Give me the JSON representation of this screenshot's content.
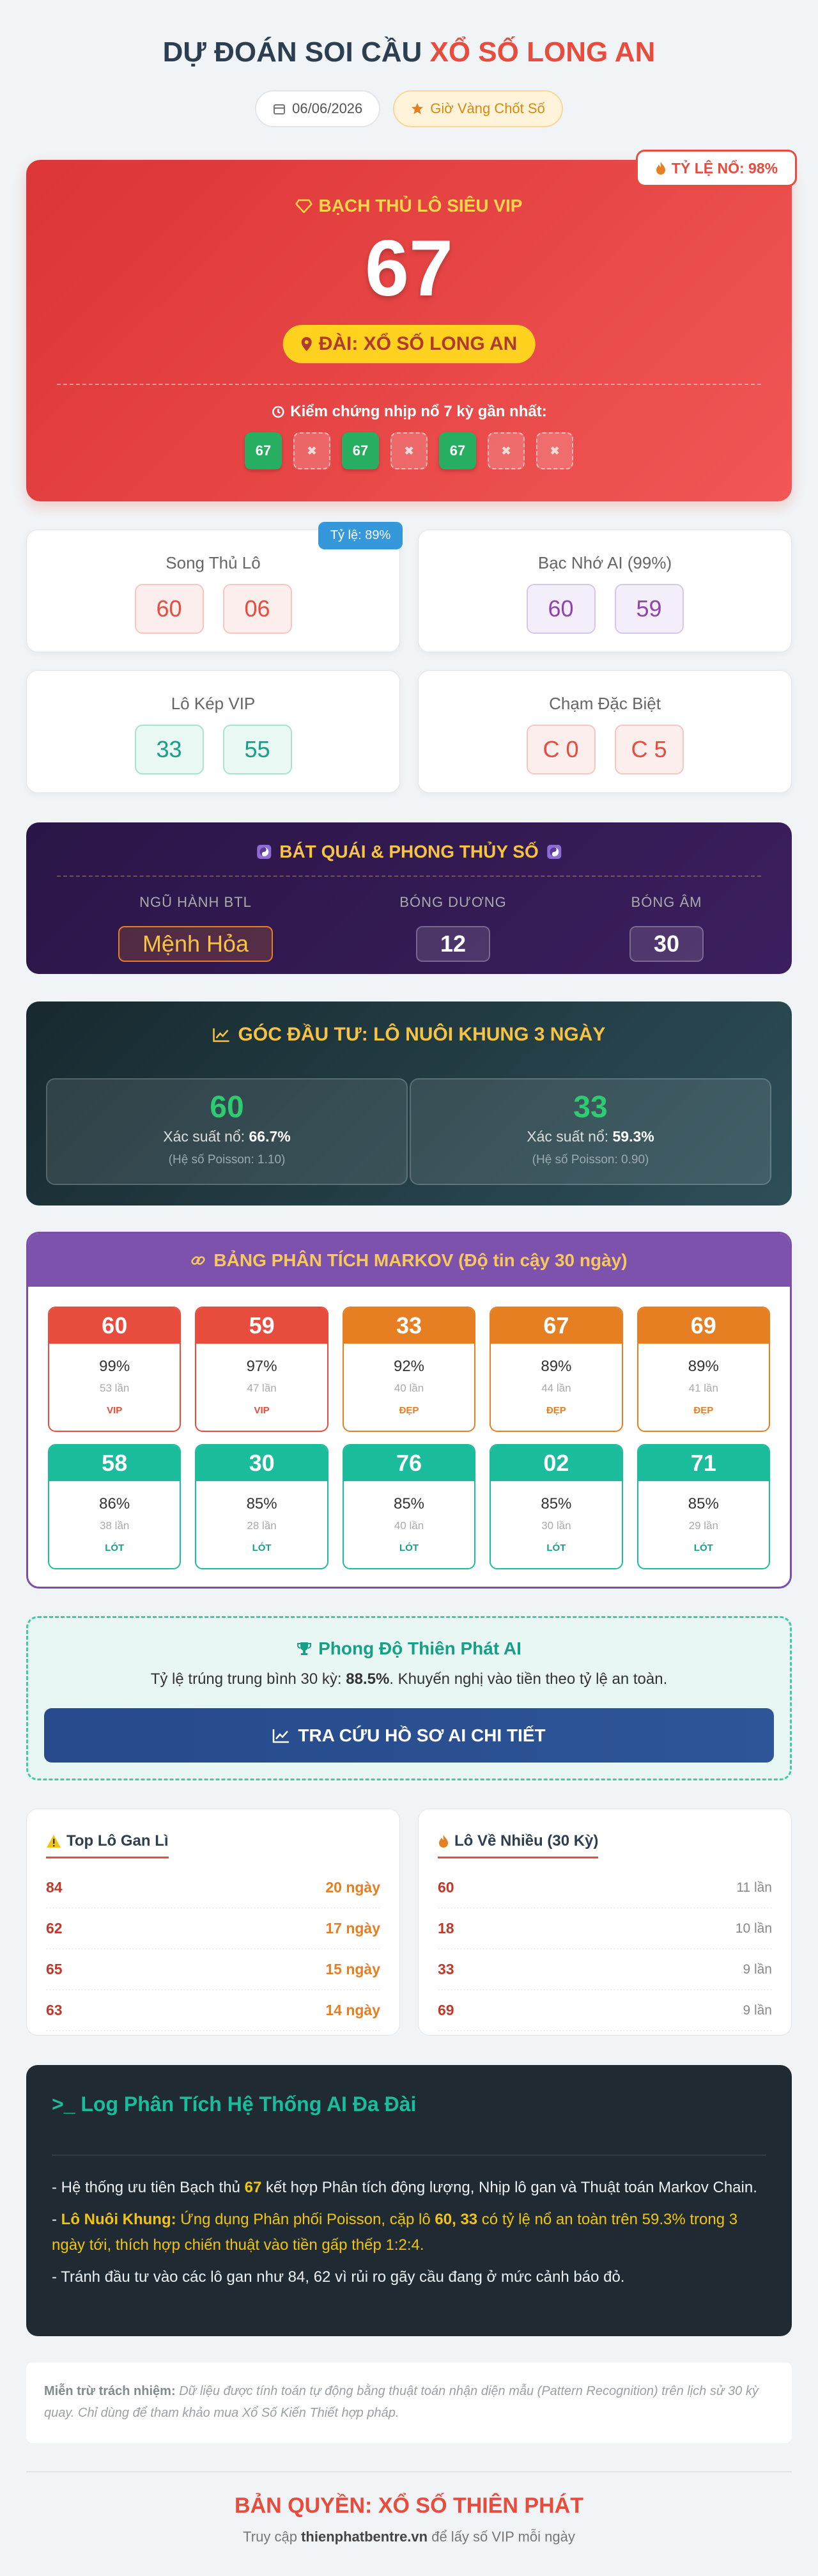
{
  "header": {
    "title_prefix": "DỰ ĐOÁN SOI CẦU",
    "title_highlight": "XỔ SỐ LONG AN",
    "date": "06/06/2026",
    "badge": "Giờ Vàng Chốt Số"
  },
  "hero": {
    "rate_badge": "TỶ LỆ NỔ: 98%",
    "label": "BẠCH THỦ LÔ SIÊU VIP",
    "number": "67",
    "station": "ĐÀI: XỔ SỐ LONG AN",
    "history_label": "Kiểm chứng nhịp nổ 7 kỳ gần nhất:",
    "history": [
      "67",
      "✖",
      "67",
      "✖",
      "67",
      "✖",
      "✖"
    ]
  },
  "cards": [
    {
      "title": "Song Thủ Lô",
      "badge": "Tỷ lệ: 89%",
      "numbers": [
        "60",
        "06"
      ]
    },
    {
      "title": "Bạc Nhớ AI (99%)",
      "numbers": [
        "60",
        "59"
      ]
    },
    {
      "title": "Lô Kép VIP",
      "numbers": [
        "33",
        "55"
      ]
    },
    {
      "title": "Chạm Đặc Biệt",
      "numbers": [
        "C 0",
        "C 5"
      ]
    }
  ],
  "fengshui": {
    "title": "BÁT QUÁI & PHONG THỦY SỐ",
    "items": [
      {
        "label": "NGŨ HÀNH BTL",
        "value": "Mệnh Hỏa"
      },
      {
        "label": "BÓNG DƯƠNG",
        "value": "12"
      },
      {
        "label": "BÓNG ÂM",
        "value": "30"
      }
    ]
  },
  "investment": {
    "title": "GÓC ĐẦU TƯ: LÔ NUÔI KHUNG 3 NGÀY",
    "items": [
      {
        "number": "60",
        "prob_label": "Xác suất nổ:",
        "prob": "66.7%",
        "poisson": "(Hệ số Poisson: 1.10)"
      },
      {
        "number": "33",
        "prob_label": "Xác suất nổ:",
        "prob": "59.3%",
        "poisson": "(Hệ số Poisson: 0.90)"
      }
    ]
  },
  "markov": {
    "title": "BẢNG PHÂN TÍCH MARKOV (Độ tin cậy 30 ngày)",
    "items": [
      {
        "number": "60",
        "percent": "99%",
        "count": "53 lần",
        "tag": "VIP"
      },
      {
        "number": "59",
        "percent": "97%",
        "count": "47 lần",
        "tag": "VIP"
      },
      {
        "number": "33",
        "percent": "92%",
        "count": "40 lần",
        "tag": "ĐẸP"
      },
      {
        "number": "67",
        "percent": "89%",
        "count": "44 lần",
        "tag": "ĐẸP"
      },
      {
        "number": "69",
        "percent": "89%",
        "count": "41 lần",
        "tag": "ĐẸP"
      },
      {
        "number": "58",
        "percent": "86%",
        "count": "38 lần",
        "tag": "LÓT"
      },
      {
        "number": "30",
        "percent": "85%",
        "count": "28 lần",
        "tag": "LÓT"
      },
      {
        "number": "76",
        "percent": "85%",
        "count": "40 lần",
        "tag": "LÓT"
      },
      {
        "number": "02",
        "percent": "85%",
        "count": "30 lần",
        "tag": "LÓT"
      },
      {
        "number": "71",
        "percent": "85%",
        "count": "29 lần",
        "tag": "LÓT"
      }
    ]
  },
  "performance": {
    "title": "Phong Độ Thiên Phát AI",
    "text_before": "Tỷ lệ trúng trung bình 30 kỳ:",
    "rate": "88.5%",
    "text_after": ". Khuyến nghị vào tiền theo tỷ lệ an toàn.",
    "button": "TRA CỨU HỒ SƠ AI CHI TIẾT"
  },
  "lists": [
    {
      "title": "Top Lô Gan Lì",
      "rows": [
        [
          "84",
          "20 ngày"
        ],
        [
          "62",
          "17 ngày"
        ],
        [
          "65",
          "15 ngày"
        ],
        [
          "63",
          "14 ngày"
        ]
      ]
    },
    {
      "title": "Lô Về Nhiều (30 Kỳ)",
      "rows": [
        [
          "60",
          "11 lần"
        ],
        [
          "18",
          "10 lần"
        ],
        [
          "33",
          "9 lần"
        ],
        [
          "69",
          "9 lần"
        ]
      ]
    }
  ],
  "log": {
    "prompt": ">_",
    "title": "Log Phân Tích Hệ Thống AI Đa Đài",
    "paragraphs": [
      [
        {
          "text": "- Hệ thống ưu tiên Bạch thủ ",
          "style": "plain"
        },
        {
          "text": "67",
          "style": "accent-strong"
        },
        {
          "text": " kết hợp Phân tích động lượng, Nhịp lô gan và Thuật toán Markov Chain.",
          "style": "plain"
        }
      ],
      [
        {
          "text": "- ",
          "style": "plain"
        },
        {
          "text": "Lô Nuôi Khung:",
          "style": "accent-strong"
        },
        {
          "text": " Ứng dụng Phân phối Poisson, cặp lô ",
          "style": "accent"
        },
        {
          "text": "60, 33",
          "style": "accent-strong"
        },
        {
          "text": " có tỷ lệ nổ an toàn trên 59.3% trong 3 ngày tới, thích hợp chiến thuật vào tiền gấp thếp 1:2:4.",
          "style": "accent"
        }
      ],
      [
        {
          "text": "- Tránh đầu tư vào các lô gan như 84, 62 vì rủi ro gãy cầu đang ở mức cảnh báo đỏ.",
          "style": "plain"
        }
      ]
    ]
  },
  "disclaimer": {
    "label": "Miễn trừ trách nhiệm:",
    "text": "Dữ liệu được tính toán tự động bằng thuật toán nhận diện mẫu (Pattern Recognition) trên lịch sử 30 kỳ quay. Chỉ dùng để tham khảo mua Xổ Số Kiến Thiết hợp pháp."
  },
  "footer": {
    "title": "BẢN QUYỀN: XỔ SỐ THIÊN PHÁT",
    "text_before": "Truy cập",
    "site": "thienphatbentre.vn",
    "text_after": "để lấy số VIP mỗi ngày"
  }
}
